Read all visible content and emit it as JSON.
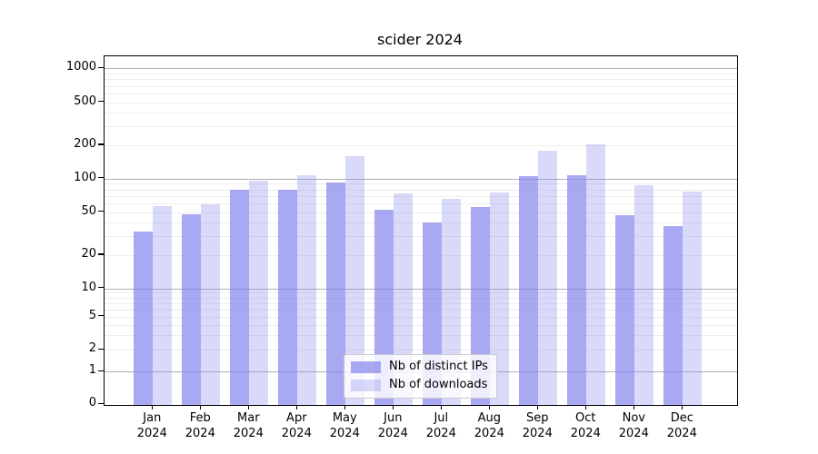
{
  "chart_data": {
    "type": "bar",
    "title": "scider 2024",
    "categories": [
      "Jan 2024",
      "Feb 2024",
      "Mar 2024",
      "Apr 2024",
      "May 2024",
      "Jun 2024",
      "Jul 2024",
      "Aug 2024",
      "Sep 2024",
      "Oct 2024",
      "Nov 2024",
      "Dec 2024"
    ],
    "months": [
      "Jan",
      "Feb",
      "Mar",
      "Apr",
      "May",
      "Jun",
      "Jul",
      "Aug",
      "Sep",
      "Oct",
      "Nov",
      "Dec"
    ],
    "year": "2024",
    "series": [
      {
        "name": "Nb of distinct IPs",
        "values": [
          33,
          48,
          80,
          79,
          92,
          53,
          40,
          56,
          106,
          107,
          47,
          37
        ],
        "color": "rgba(136,136,238,0.72)"
      },
      {
        "name": "Nb of downloads",
        "values": [
          57,
          59,
          95,
          107,
          160,
          74,
          66,
          75,
          178,
          202,
          88,
          76
        ],
        "color": "rgba(136,136,238,0.32)"
      }
    ],
    "y_axis": {
      "scale": "symlog",
      "ticks": [
        0,
        1,
        2,
        5,
        10,
        20,
        50,
        100,
        200,
        500,
        1000
      ],
      "ylim": [
        0,
        1000
      ]
    },
    "xlabel": "",
    "ylabel": "",
    "grid": true,
    "legend": {
      "position": "lower-center",
      "entries": [
        "Nb of distinct IPs",
        "Nb of downloads"
      ]
    },
    "style": {
      "bar_ips_color": "rgba(136,136,238,0.72)",
      "bar_downloads_color": "rgba(136,136,238,0.32)",
      "grid_major_color": "#b0b0b0",
      "grid_minor_color": "#ededed",
      "frame_color": "#000000",
      "background_color": "#ffffff"
    }
  }
}
